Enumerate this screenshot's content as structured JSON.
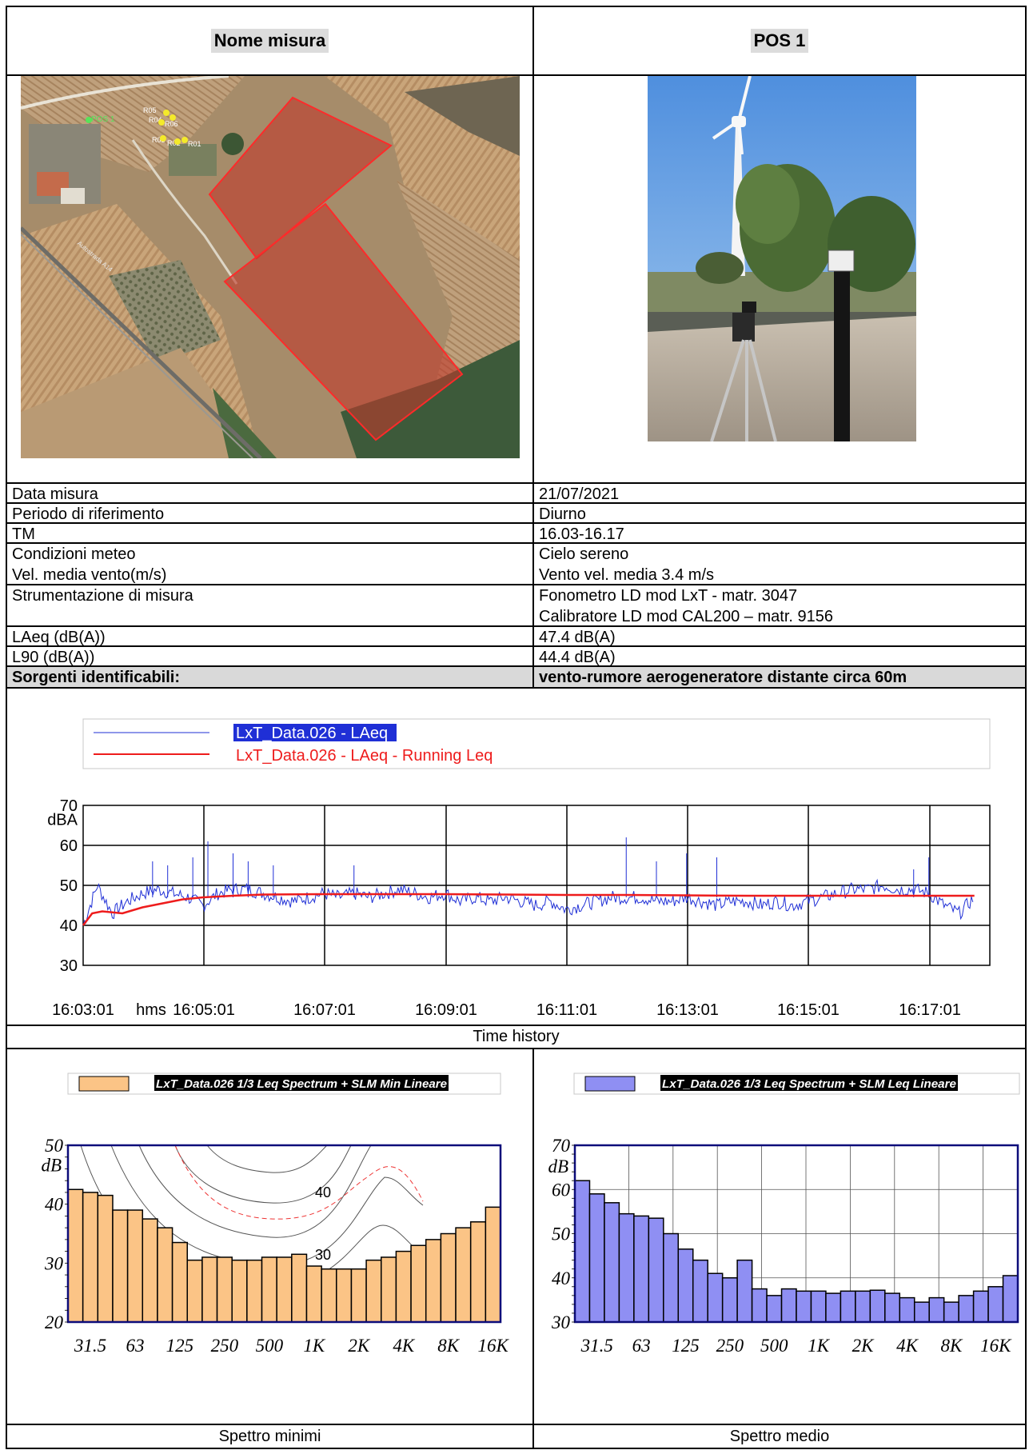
{
  "header": {
    "left_label": "Nome misura",
    "right_label": "POS 1"
  },
  "map": {
    "labels": [
      "POS 1",
      "R05",
      "R04",
      "R06",
      "R03",
      "R02",
      "R01",
      "Autostrada A14"
    ]
  },
  "info_rows": [
    {
      "label": "Data misura",
      "value": "21/07/2021"
    },
    {
      "label": "Periodo di riferimento",
      "value": "Diurno"
    },
    {
      "label": "TM",
      "value": "16.03-16.17"
    },
    {
      "label": "Condizioni meteo",
      "label2": "Vel. media vento(m/s)",
      "value": "Cielo sereno",
      "value2": "Vento vel. media 3.4 m/s"
    },
    {
      "label": "Strumentazione di misura",
      "value": "Fonometro LD mod LxT -  matr. 3047",
      "value2": "Calibratore LD mod CAL200 – matr. 9156"
    },
    {
      "label": "LAeq (dB(A))",
      "value": "47.4 dB(A)"
    },
    {
      "label": "L90 (dB(A))",
      "value": "44.4 dB(A)"
    },
    {
      "label": "Sorgenti identificabili:",
      "value": "vento-rumore aerogeneratore distante circa 60m"
    }
  ],
  "colors": {
    "blue": "#1f2fd6",
    "red": "#ee1c1c",
    "orange": "#fbc486",
    "violet": "#8f8ff3",
    "navy": "#0c0c7a"
  },
  "chart_data": [
    {
      "type": "line",
      "legend": [
        "LxT_Data.026 - LAeq",
        "LxT_Data.026 - LAeq - Running Leq"
      ],
      "ylabel": "dBA",
      "xunit": "hms",
      "ylim": [
        30,
        70
      ],
      "yticks": [
        "70",
        "60",
        "50",
        "40",
        "30"
      ],
      "xticks": [
        "16:03:01",
        "16:05:01",
        "16:07:01",
        "16:09:01",
        "16:11:01",
        "16:13:01",
        "16:15:01",
        "16:17:01"
      ],
      "series": [
        {
          "name": "LxT_Data.026 - LAeq",
          "x": [
            "16:03:01",
            "16:03:15",
            "16:03:30",
            "16:03:45",
            "16:04:00",
            "16:04:15",
            "16:04:30",
            "16:04:45",
            "16:05:00",
            "16:05:15",
            "16:05:30",
            "16:05:45",
            "16:06:00",
            "16:06:15",
            "16:06:30",
            "16:06:45",
            "16:07:00",
            "16:07:15",
            "16:07:30",
            "16:07:45",
            "16:08:00",
            "16:08:15",
            "16:08:30",
            "16:08:45",
            "16:09:00",
            "16:09:15",
            "16:09:30",
            "16:09:45",
            "16:10:00",
            "16:10:15",
            "16:10:30",
            "16:10:45",
            "16:11:00",
            "16:11:15",
            "16:11:30",
            "16:11:45",
            "16:12:00",
            "16:12:15",
            "16:12:30",
            "16:12:45",
            "16:13:00",
            "16:13:15",
            "16:13:30",
            "16:13:45",
            "16:14:00",
            "16:14:15",
            "16:14:30",
            "16:14:45",
            "16:15:00",
            "16:15:15",
            "16:15:30",
            "16:15:45",
            "16:16:00",
            "16:16:15",
            "16:16:30",
            "16:16:45",
            "16:17:00",
            "16:17:15",
            "16:17:30",
            "16:17:45"
          ],
          "values": [
            40,
            50,
            43,
            46,
            48,
            49,
            48,
            47,
            45,
            48,
            49,
            49,
            48,
            47,
            46,
            47,
            48,
            47,
            48,
            47,
            48,
            49,
            48,
            47,
            48,
            46,
            47,
            46,
            47,
            46,
            45,
            46,
            44,
            45,
            46,
            47,
            47,
            47,
            46,
            46,
            47,
            46,
            45,
            46,
            46,
            45,
            46,
            45,
            46,
            47,
            48,
            49,
            49,
            50,
            49,
            49,
            48,
            45,
            43,
            47
          ]
        },
        {
          "name": "LxT_Data.026 - LAeq - Running Leq",
          "x": [
            "16:03:01",
            "16:03:10",
            "16:03:20",
            "16:03:40",
            "16:04:00",
            "16:04:20",
            "16:04:40",
            "16:05:00",
            "16:05:30",
            "16:06:00",
            "16:07:00",
            "16:08:00",
            "16:09:00",
            "16:10:00",
            "16:11:00",
            "16:12:00",
            "16:13:00",
            "16:14:00",
            "16:15:00",
            "16:16:00",
            "16:17:00",
            "16:17:45"
          ],
          "values": [
            40,
            43,
            43.5,
            43,
            44.5,
            45.5,
            46.5,
            47,
            47.4,
            47.7,
            47.8,
            47.8,
            47.8,
            47.7,
            47.6,
            47.6,
            47.5,
            47.4,
            47.4,
            47.4,
            47.4,
            47.4
          ]
        }
      ],
      "caption": "Time history"
    },
    {
      "type": "bar",
      "legend": "LxT_Data.026 1/3 Leq Spectrum + SLM Min Lineare",
      "ylabel": "dB",
      "ylim": [
        20,
        50
      ],
      "yticks": [
        "50",
        "40",
        "30",
        "20"
      ],
      "xticks": [
        "31.5",
        "63",
        "125",
        "250",
        "500",
        "1K",
        "2K",
        "4K",
        "8K",
        "16K"
      ],
      "contour_labels": [
        "40",
        "30"
      ],
      "values": [
        42.5,
        42,
        41.5,
        39,
        39,
        37.5,
        36,
        33.5,
        30.5,
        31,
        31,
        30.5,
        30.5,
        31,
        31,
        31.5,
        29.5,
        29,
        29,
        29,
        30.5,
        31,
        32,
        33,
        34,
        35,
        36,
        37,
        39.5
      ],
      "caption": "Spettro minimi"
    },
    {
      "type": "bar",
      "legend": "LxT_Data.026 1/3 Leq Spectrum + SLM Leq Lineare",
      "ylabel": "dB",
      "ylim": [
        30,
        70
      ],
      "yticks": [
        "70",
        "60",
        "50",
        "40"
      ],
      "ytick_bottom": "30",
      "xticks": [
        "31.5",
        "63",
        "125",
        "250",
        "500",
        "1K",
        "2K",
        "4K",
        "8K",
        "16K"
      ],
      "values": [
        62,
        59,
        57,
        54.5,
        54,
        53.5,
        50,
        46.5,
        44,
        41,
        40,
        44,
        37.5,
        36,
        37.5,
        37,
        37,
        36.5,
        37,
        37,
        37.2,
        36.5,
        35.5,
        34.5,
        35.5,
        34.5,
        36,
        37,
        38,
        40.5
      ],
      "caption": "Spettro medio"
    }
  ]
}
